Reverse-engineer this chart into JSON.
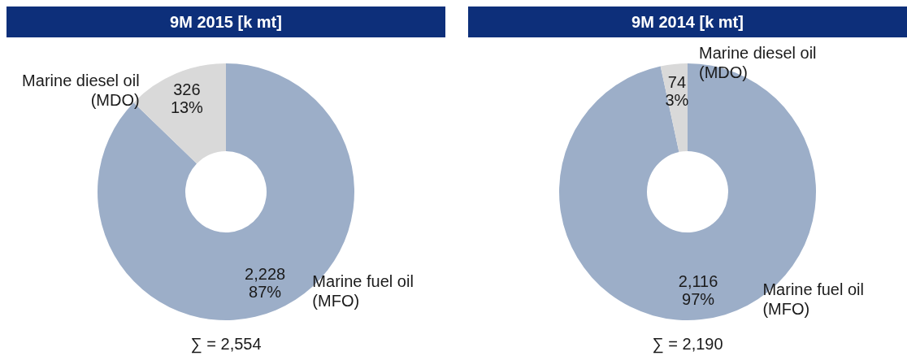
{
  "chart_data": [
    {
      "type": "donut",
      "title": "9M 2015 [k mt]",
      "categories": [
        "Marine fuel oil (MFO)",
        "Marine diesel oil (MDO)"
      ],
      "values": [
        2228,
        326
      ],
      "colors": [
        "#9caec8",
        "#d9d9d9"
      ],
      "value_labels": [
        "2,228\n87%",
        "326\n13%"
      ],
      "annotations": [
        "∑ = 2,554"
      ],
      "legend": false
    },
    {
      "type": "donut",
      "title": "9M 2014 [k mt]",
      "categories": [
        "Marine fuel oil (MFO)",
        "Marine diesel oil (MDO)"
      ],
      "values": [
        2116,
        74
      ],
      "colors": [
        "#9caec8",
        "#d9d9d9"
      ],
      "value_labels": [
        "2,116\n97%",
        "74\n3%"
      ],
      "annotations": [
        "∑ = 2,190"
      ],
      "legend": false
    }
  ]
}
